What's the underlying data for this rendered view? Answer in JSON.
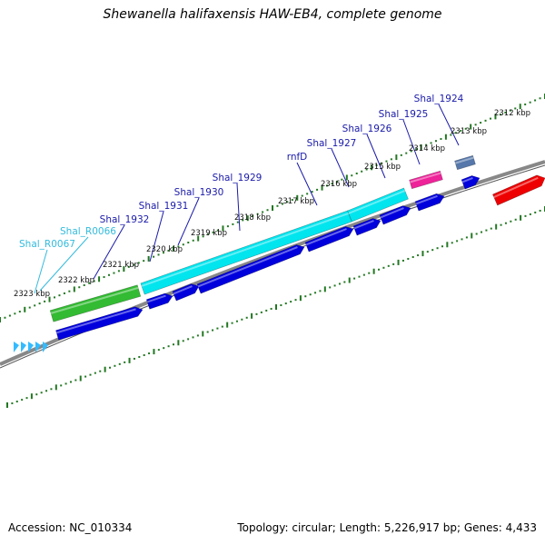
{
  "title": "Shewanella halifaxensis HAW-EB4, complete genome",
  "footer": {
    "accession": "Accession: NC_010334",
    "summary": "Topology: circular; Length: 5,226,917 bp; Genes: 4,433"
  },
  "colors": {
    "cds": "#0000dd",
    "gene": "#00e5ee",
    "gene_special": "#33bb33",
    "pink_feature": "#ee2299",
    "gray_feature": "#5577aa",
    "red_feature": "#ee0000",
    "rna_arrows": "#33bbff",
    "tick": "#227722",
    "backbone": "#888888",
    "label_protein": "#1a1aaa",
    "label_rna": "#33bbdd"
  },
  "kbp_labels": [
    "2312 kbp",
    "2313 kbp",
    "2314 kbp",
    "2315 kbp",
    "2316 kbp",
    "2317 kbp",
    "2318 kbp",
    "2319 kbp",
    "2320 kbp",
    "2321 kbp",
    "2322 kbp",
    "2323 kbp"
  ],
  "gene_labels": [
    {
      "text": "Shal_1924",
      "type": "protein"
    },
    {
      "text": "Shal_1925",
      "type": "protein"
    },
    {
      "text": "Shal_1926",
      "type": "protein"
    },
    {
      "text": "Shal_1927",
      "type": "protein"
    },
    {
      "text": "rnfD",
      "type": "protein"
    },
    {
      "text": "Shal_1929",
      "type": "protein"
    },
    {
      "text": "Shal_1930",
      "type": "protein"
    },
    {
      "text": "Shal_1931",
      "type": "protein"
    },
    {
      "text": "Shal_1932",
      "type": "protein"
    },
    {
      "text": "Shal_R0066",
      "type": "rna"
    },
    {
      "text": "Shal_R0067",
      "type": "rna"
    }
  ]
}
